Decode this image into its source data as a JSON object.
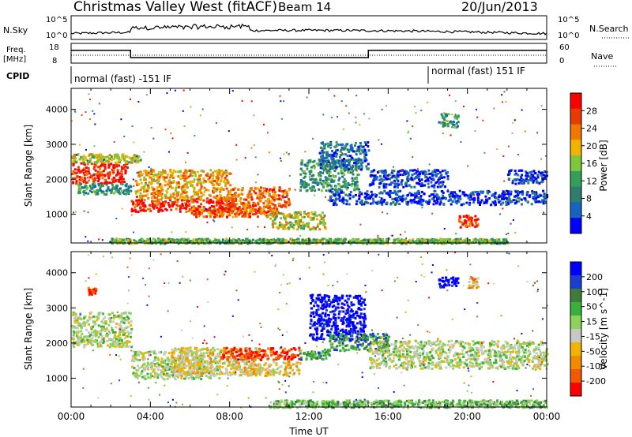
{
  "header": {
    "station": "Christmas Valley West (fitACF)",
    "beam": "Beam 14",
    "date": "20/Jun/2013"
  },
  "colors": {
    "power": [
      "#0000ff",
      "#1565c0",
      "#2e7d6e",
      "#33a05a",
      "#7fc63c",
      "#f0b400",
      "#f07800",
      "#e83b00",
      "#ff0000"
    ],
    "velocity": [
      "#0000ff",
      "#1a3fd0",
      "#3d7c3a",
      "#3ab03a",
      "#8dd35a",
      "#c8c8c0",
      "#f0b400",
      "#f08a00",
      "#f05a00",
      "#ff0000"
    ]
  },
  "chart_data": [
    {
      "type": "line",
      "name": "noise-panel",
      "left_label": "N.Sky",
      "right_label": "N.Search",
      "left_ticks": [
        "10^5",
        "10^0"
      ],
      "right_ticks": [
        "10^5",
        "10^0"
      ]
    },
    {
      "type": "line",
      "name": "freq-panel",
      "left_label_lines": [
        "Freq.",
        "[MHz]"
      ],
      "right_label": "Nave",
      "left_ticks": [
        "18",
        "8"
      ],
      "right_ticks": [
        "60",
        "0"
      ],
      "freq_segments": [
        {
          "x0": 0.0,
          "x1": 3.0,
          "y": 14.5
        },
        {
          "x0": 3.0,
          "x1": 15.0,
          "y": 10.8
        },
        {
          "x0": 15.0,
          "x1": 24.0,
          "y": 14.5
        }
      ]
    },
    {
      "type": "table",
      "name": "cpid-panel",
      "label": "CPID",
      "modes": [
        {
          "text": "normal (fast) -151 IF",
          "start": 0.0,
          "end": 18.0
        },
        {
          "text": "normal (fast) 151 IF",
          "start": 18.0,
          "end": 24.0
        }
      ]
    },
    {
      "type": "heatmap",
      "name": "power-panel",
      "ylabel": "Slant Range [km]",
      "yticks": [
        1000,
        2000,
        3000,
        4000
      ],
      "ylim": [
        180,
        4600
      ],
      "xlim": [
        0,
        24
      ],
      "colorbar_label": "Power [dB]",
      "colorbar_ticks": [
        "4",
        "8",
        "12",
        "16",
        "20",
        "24",
        "28"
      ],
      "features": [
        {
          "t0": 0.0,
          "t1": 2.8,
          "r0": 1900,
          "r1": 2500,
          "level": 8
        },
        {
          "t0": 0.0,
          "t1": 3.5,
          "r0": 2500,
          "r1": 2750,
          "level": 5
        },
        {
          "t0": 0.3,
          "t1": 3.0,
          "r0": 1600,
          "r1": 1900,
          "level": 3
        },
        {
          "t0": 3.0,
          "t1": 8.2,
          "r0": 1100,
          "r1": 1450,
          "level": 8
        },
        {
          "t0": 3.2,
          "t1": 8.0,
          "r0": 1450,
          "r1": 2300,
          "level": 6
        },
        {
          "t0": 8.0,
          "t1": 11.0,
          "r0": 1200,
          "r1": 1800,
          "level": 7
        },
        {
          "t0": 6.0,
          "t1": 10.5,
          "r0": 950,
          "r1": 1200,
          "level": 7
        },
        {
          "t0": 10.0,
          "t1": 12.8,
          "r0": 600,
          "r1": 1100,
          "level": 5
        },
        {
          "t0": 11.5,
          "t1": 14.5,
          "r0": 1700,
          "r1": 2600,
          "level": 3
        },
        {
          "t0": 12.5,
          "t1": 15.0,
          "r0": 2300,
          "r1": 3100,
          "level": 2
        },
        {
          "t0": 13.0,
          "t1": 24.0,
          "r0": 1300,
          "r1": 1700,
          "level": 1
        },
        {
          "t0": 15.0,
          "t1": 19.0,
          "r0": 1800,
          "r1": 2300,
          "level": 1
        },
        {
          "t0": 19.5,
          "t1": 20.5,
          "r0": 650,
          "r1": 1000,
          "level": 8
        },
        {
          "t0": 22.0,
          "t1": 24.0,
          "r0": 1900,
          "r1": 2300,
          "level": 1
        },
        {
          "t0": 2.0,
          "t1": 22.0,
          "r0": 190,
          "r1": 330,
          "level": 4
        },
        {
          "t0": 18.5,
          "t1": 19.5,
          "r0": 3500,
          "r1": 3900,
          "level": 3
        }
      ]
    },
    {
      "type": "heatmap",
      "name": "velocity-panel",
      "ylabel": "Slant Range [km]",
      "yticks": [
        1000,
        2000,
        3000,
        4000
      ],
      "ylim": [
        180,
        4600
      ],
      "xlim": [
        0,
        24
      ],
      "xlabel": "Time UT",
      "xticks": [
        "00:00",
        "04:00",
        "08:00",
        "12:00",
        "16:00",
        "20:00",
        "00:00"
      ],
      "colorbar_label": "Velocity [m s^-1]",
      "colorbar_ticks": [
        "200",
        "100",
        "50",
        "15",
        "-15",
        "-50",
        "-100",
        "-200"
      ],
      "features": [
        {
          "t0": 0.0,
          "t1": 3.0,
          "r0": 1900,
          "r1": 2900,
          "level": 5
        },
        {
          "t0": 3.0,
          "t1": 7.5,
          "r0": 1000,
          "r1": 1800,
          "level": 5
        },
        {
          "t0": 5.0,
          "t1": 9.5,
          "r0": 1100,
          "r1": 1900,
          "level": 6
        },
        {
          "t0": 7.5,
          "t1": 11.5,
          "r0": 1550,
          "r1": 1900,
          "level": 9
        },
        {
          "t0": 8.0,
          "t1": 11.5,
          "r0": 1100,
          "r1": 1500,
          "level": 6
        },
        {
          "t0": 11.5,
          "t1": 13.0,
          "r0": 1550,
          "r1": 1850,
          "level": 3
        },
        {
          "t0": 12.0,
          "t1": 14.8,
          "r0": 2100,
          "r1": 3400,
          "level": 0
        },
        {
          "t0": 13.0,
          "t1": 16.0,
          "r0": 1800,
          "r1": 2300,
          "level": 3
        },
        {
          "t0": 15.0,
          "t1": 24.0,
          "r0": 1300,
          "r1": 2100,
          "level": 5
        },
        {
          "t0": 10.0,
          "t1": 24.0,
          "r0": 190,
          "r1": 400,
          "level": 4
        },
        {
          "t0": 18.5,
          "t1": 19.5,
          "r0": 3600,
          "r1": 3900,
          "level": 0
        },
        {
          "t0": 20.0,
          "t1": 20.5,
          "r0": 3600,
          "r1": 3900,
          "level": 7
        },
        {
          "t0": 0.8,
          "t1": 1.3,
          "r0": 3400,
          "r1": 3600,
          "level": 9
        }
      ]
    }
  ]
}
